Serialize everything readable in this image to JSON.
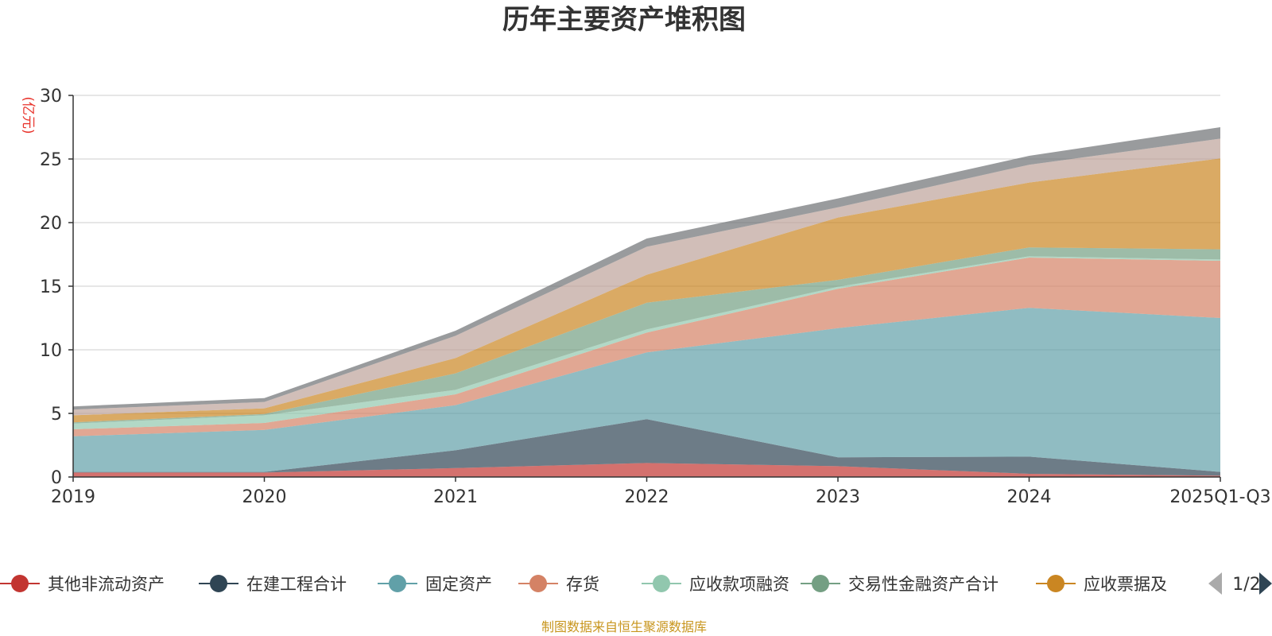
{
  "chart_data": {
    "type": "area",
    "stacked": true,
    "title": "历年主要资产堆积图",
    "unit_label": "(亿元)",
    "x": [
      "2019",
      "2020",
      "2021",
      "2022",
      "2023",
      "2024",
      "2025Q1-Q3"
    ],
    "ylim": [
      0,
      30
    ],
    "yticks": [
      0,
      5,
      10,
      15,
      20,
      25,
      30
    ],
    "grid": true,
    "series": [
      {
        "name": "其他非流动资产",
        "color": "#c23531",
        "values": [
          0.35,
          0.35,
          0.7,
          1.1,
          0.85,
          0.25,
          0.1
        ],
        "in_legend": true
      },
      {
        "name": "在建工程合计",
        "color": "#2f4554",
        "values": [
          0.05,
          0.05,
          1.4,
          3.45,
          0.7,
          1.35,
          0.3
        ],
        "in_legend": true
      },
      {
        "name": "固定资产",
        "color": "#61a0a8",
        "values": [
          2.8,
          3.3,
          3.55,
          5.25,
          10.15,
          11.7,
          12.1
        ],
        "in_legend": true
      },
      {
        "name": "存货",
        "color": "#d48265",
        "values": [
          0.55,
          0.55,
          0.85,
          1.55,
          3.1,
          3.95,
          4.5
        ],
        "in_legend": true
      },
      {
        "name": "应收款项融资",
        "color": "#91c7ae",
        "values": [
          0.45,
          0.6,
          0.35,
          0.25,
          0.15,
          0.1,
          0.1
        ],
        "in_legend": true
      },
      {
        "name": "交易性金融资产合计",
        "color": "#749f83",
        "values": [
          0.1,
          0.1,
          1.3,
          2.1,
          0.55,
          0.7,
          0.8
        ],
        "in_legend": true
      },
      {
        "name": "应收票据及应收账款",
        "color": "#ca8622",
        "values": [
          0.55,
          0.45,
          1.2,
          2.2,
          4.9,
          5.1,
          7.15
        ],
        "in_legend": true,
        "legend_label": "应收票据及"
      },
      {
        "name": "series-8",
        "color": "#bda29a",
        "values": [
          0.45,
          0.5,
          1.75,
          2.2,
          0.8,
          1.4,
          1.55
        ],
        "in_legend": false
      },
      {
        "name": "series-9",
        "color": "#6e7074",
        "values": [
          0.25,
          0.3,
          0.4,
          0.65,
          0.7,
          0.7,
          0.9
        ],
        "in_legend": false
      }
    ],
    "legend": {
      "placement": "bottom",
      "page": "1/2"
    },
    "source_note": "制图数据来自恒生聚源数据库"
  }
}
